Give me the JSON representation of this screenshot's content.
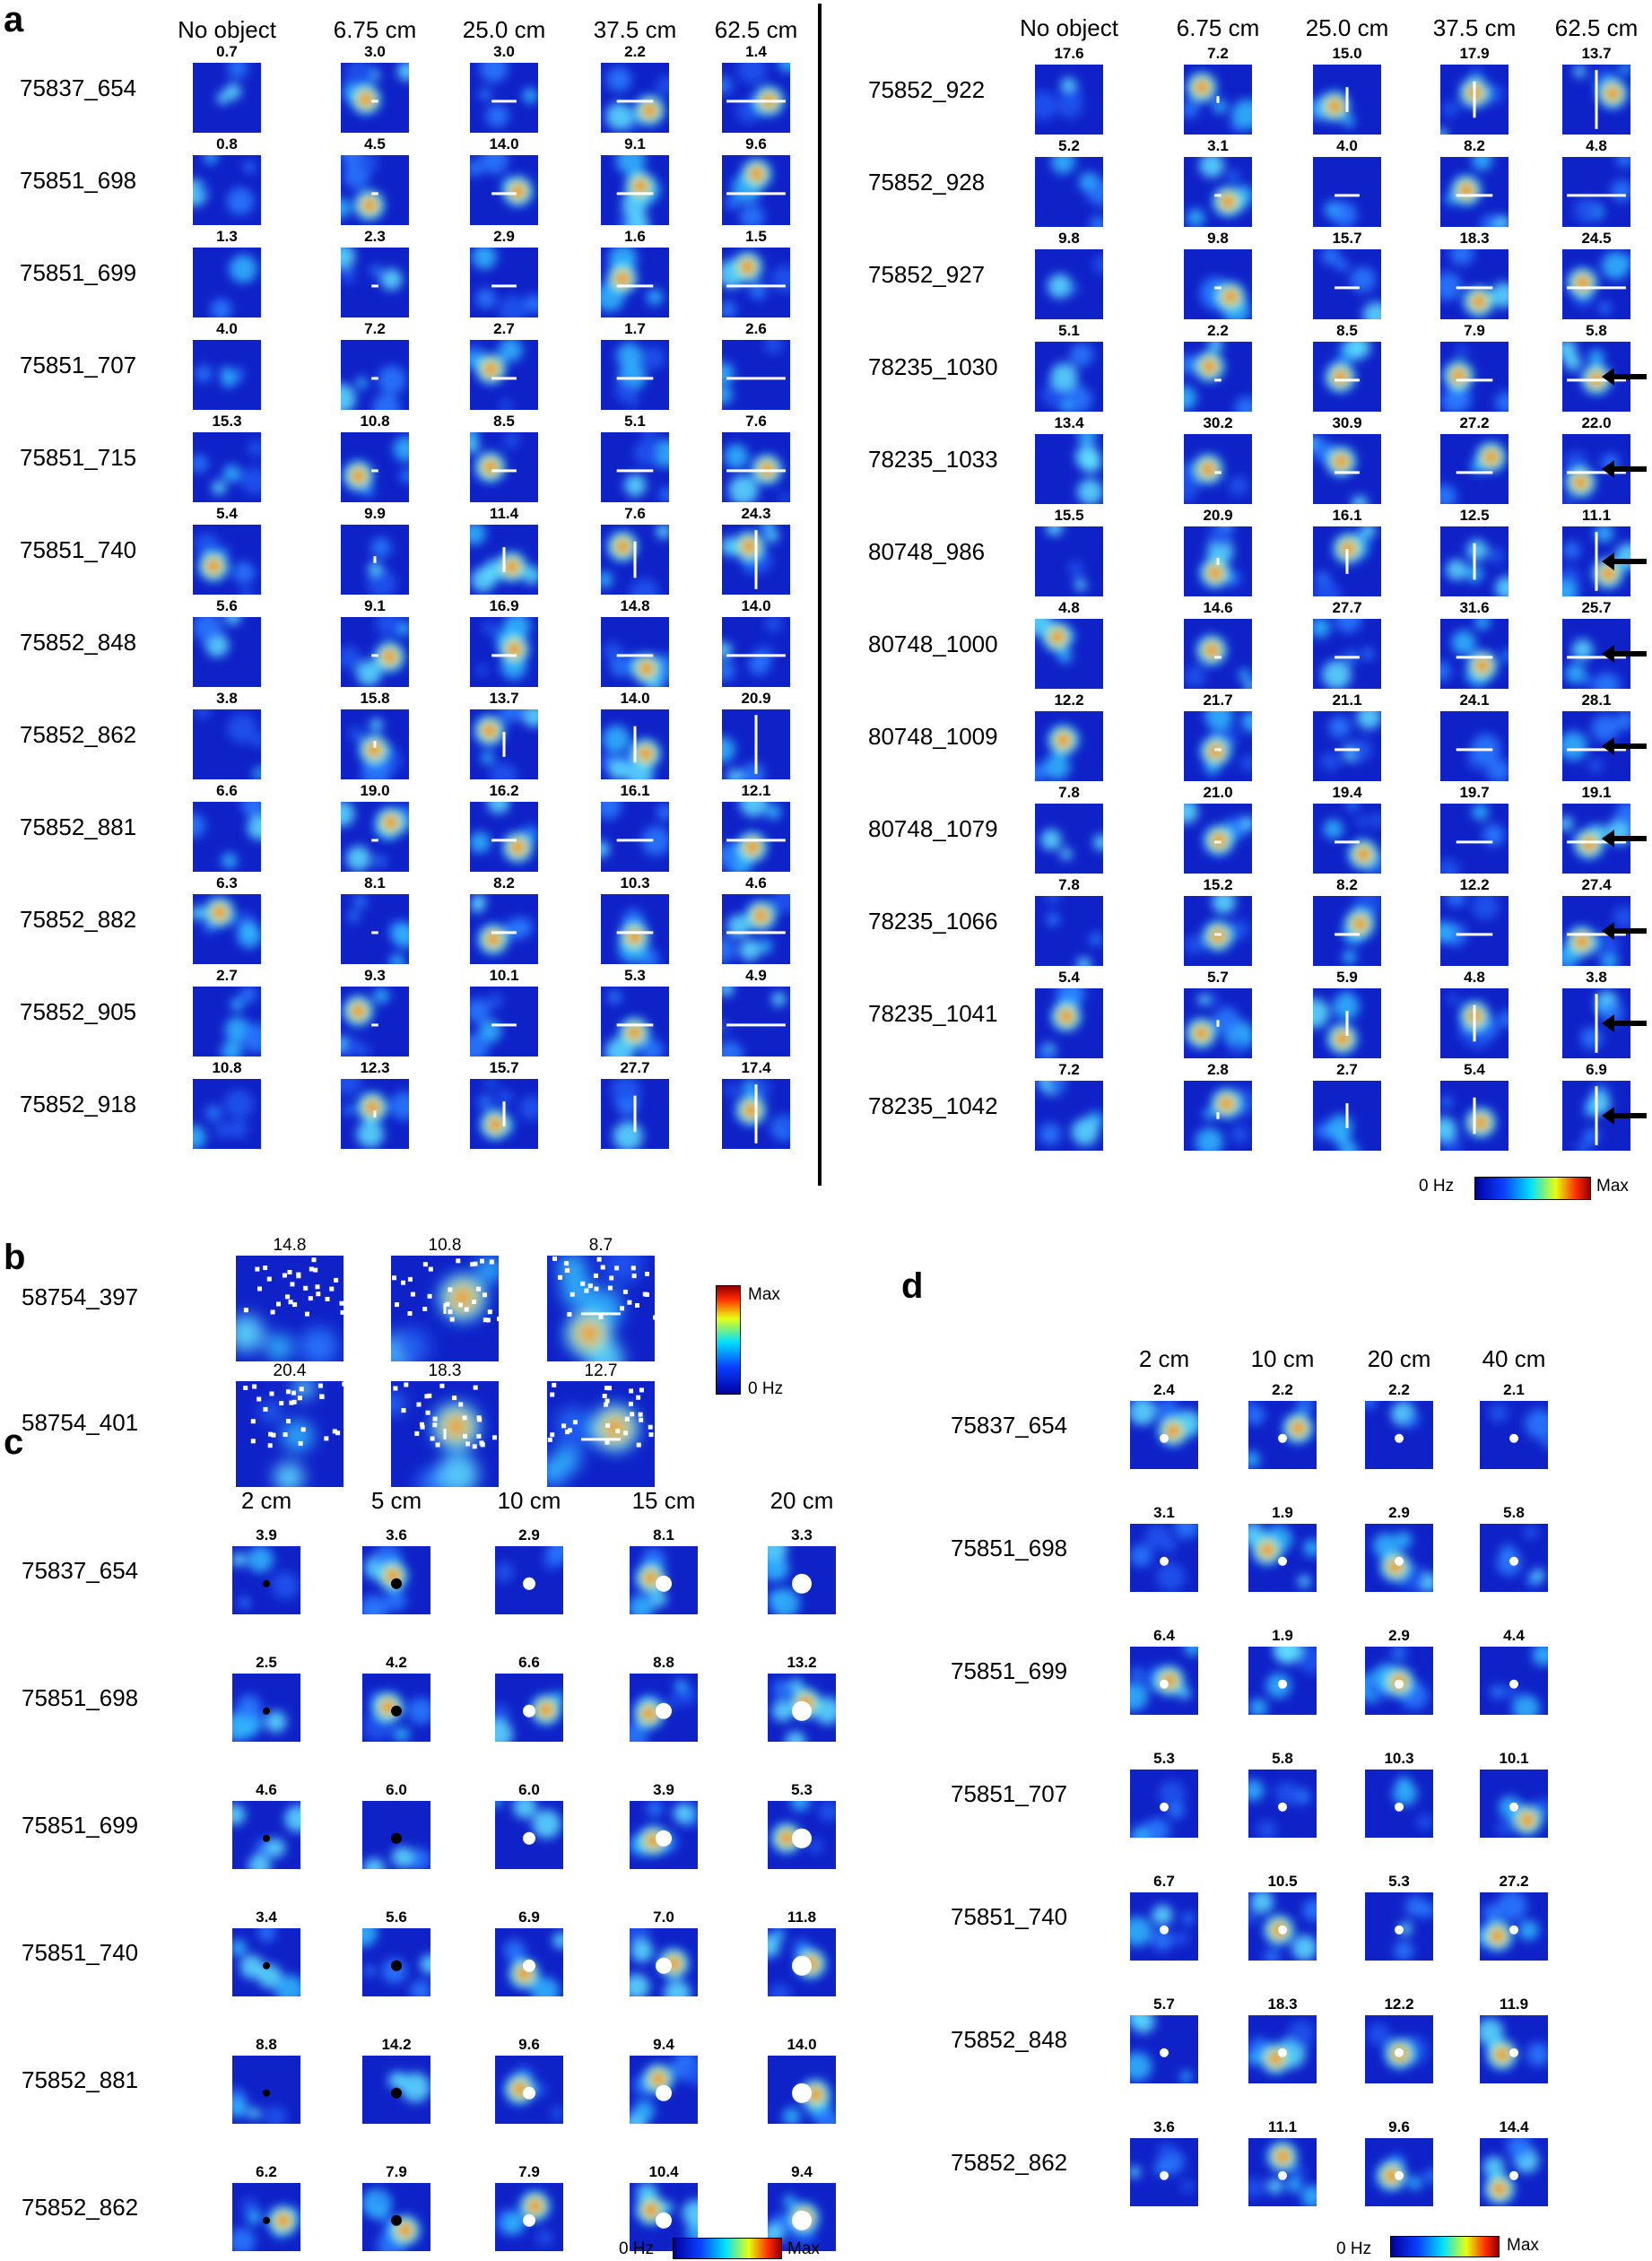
{
  "palette": {
    "low": "#1a1aa8",
    "mid": "#0a3fd6",
    "accent": "#35a2ff",
    "hot": "#e81818"
  },
  "panels": [
    {
      "letter": "a",
      "groups": [
        {
          "columns": [
            "No object",
            "6.75 cm",
            "25.0 cm",
            "37.5 cm",
            "62.5 cm"
          ],
          "rows": [
            {
              "label": "75837_654",
              "rates": [
                "0.7",
                "3.0",
                "3.0",
                "2.2",
                "1.4"
              ]
            },
            {
              "label": "75851_698",
              "rates": [
                "0.8",
                "4.5",
                "14.0",
                "9.1",
                "9.6"
              ]
            },
            {
              "label": "75851_699",
              "rates": [
                "1.3",
                "2.3",
                "2.9",
                "1.6",
                "1.5"
              ]
            },
            {
              "label": "75851_707",
              "rates": [
                "4.0",
                "7.2",
                "2.7",
                "1.7",
                "2.6"
              ]
            },
            {
              "label": "75851_715",
              "rates": [
                "15.3",
                "10.8",
                "8.5",
                "5.1",
                "7.6"
              ]
            },
            {
              "label": "75851_740",
              "rates": [
                "5.4",
                "9.9",
                "11.4",
                "7.6",
                "24.3"
              ]
            },
            {
              "label": "75852_848",
              "rates": [
                "5.6",
                "9.1",
                "16.9",
                "14.8",
                "14.0"
              ]
            },
            {
              "label": "75852_862",
              "rates": [
                "3.8",
                "15.8",
                "13.7",
                "14.0",
                "20.9"
              ]
            },
            {
              "label": "75852_881",
              "rates": [
                "6.6",
                "19.0",
                "16.2",
                "16.1",
                "12.1"
              ]
            },
            {
              "label": "75852_882",
              "rates": [
                "6.3",
                "8.1",
                "8.2",
                "10.3",
                "4.6"
              ]
            },
            {
              "label": "75852_905",
              "rates": [
                "2.7",
                "9.3",
                "10.1",
                "5.3",
                "4.9"
              ]
            },
            {
              "label": "75852_918",
              "rates": [
                "10.8",
                "12.3",
                "15.7",
                "27.7",
                "17.4"
              ]
            }
          ]
        },
        {
          "columns": [
            "No object",
            "6.75 cm",
            "25.0 cm",
            "37.5 cm",
            "62.5 cm"
          ],
          "rows": [
            {
              "label": "75852_922",
              "rates": [
                "17.6",
                "7.2",
                "15.0",
                "17.9",
                "13.7"
              ]
            },
            {
              "label": "75852_928",
              "rates": [
                "5.2",
                "3.1",
                "4.0",
                "8.2",
                "4.8"
              ]
            },
            {
              "label": "75852_927",
              "rates": [
                "9.8",
                "9.8",
                "15.7",
                "18.3",
                "24.5"
              ]
            },
            {
              "label": "78235_1030",
              "rates": [
                "5.1",
                "2.2",
                "8.5",
                "7.9",
                "5.8"
              ]
            },
            {
              "label": "78235_1033",
              "rates": [
                "13.4",
                "30.2",
                "30.9",
                "27.2",
                "22.0"
              ]
            },
            {
              "label": "80748_986",
              "rates": [
                "15.5",
                "20.9",
                "16.1",
                "12.5",
                "11.1"
              ]
            },
            {
              "label": "80748_1000",
              "rates": [
                "4.8",
                "14.6",
                "27.7",
                "31.6",
                "25.7"
              ]
            },
            {
              "label": "80748_1009",
              "rates": [
                "12.2",
                "21.7",
                "21.1",
                "24.1",
                "28.1"
              ]
            },
            {
              "label": "80748_1079",
              "rates": [
                "7.8",
                "21.0",
                "19.4",
                "19.7",
                "19.1"
              ]
            },
            {
              "label": "78235_1066",
              "rates": [
                "7.8",
                "15.2",
                "8.2",
                "12.2",
                "27.4"
              ]
            },
            {
              "label": "78235_1041",
              "rates": [
                "5.4",
                "5.7",
                "5.9",
                "4.8",
                "3.8"
              ]
            },
            {
              "label": "78235_1042",
              "rates": [
                "7.2",
                "2.8",
                "2.7",
                "5.4",
                "6.9"
              ]
            }
          ]
        }
      ],
      "colorbar": {
        "low": "0 Hz",
        "high": "Max"
      }
    },
    {
      "letter": "b",
      "rows": [
        {
          "label": "58754_397",
          "rates": [
            "14.8",
            "10.8",
            "8.7"
          ]
        },
        {
          "label": "58754_401",
          "rates": [
            "20.4",
            "18.3",
            "12.7"
          ]
        }
      ],
      "colorbar": {
        "low": "0 Hz",
        "high": "Max"
      }
    },
    {
      "letter": "c",
      "columns": [
        "2 cm",
        "5 cm",
        "10 cm",
        "15 cm",
        "20 cm"
      ],
      "rows": [
        {
          "label": "75837_654",
          "rates": [
            "3.9",
            "3.6",
            "2.9",
            "8.1",
            "3.3"
          ]
        },
        {
          "label": "75851_698",
          "rates": [
            "2.5",
            "4.2",
            "6.6",
            "8.8",
            "13.2"
          ]
        },
        {
          "label": "75851_699",
          "rates": [
            "4.6",
            "6.0",
            "6.0",
            "3.9",
            "5.3"
          ]
        },
        {
          "label": "75851_740",
          "rates": [
            "3.4",
            "5.6",
            "6.9",
            "7.0",
            "11.8"
          ]
        },
        {
          "label": "75852_881",
          "rates": [
            "8.8",
            "14.2",
            "9.6",
            "9.4",
            "14.0"
          ]
        },
        {
          "label": "75852_862",
          "rates": [
            "6.2",
            "7.9",
            "7.9",
            "10.4",
            "9.4"
          ]
        }
      ],
      "colorbar": {
        "low": "0 Hz",
        "high": "Max"
      }
    },
    {
      "letter": "d",
      "columns": [
        "2 cm",
        "10 cm",
        "20 cm",
        "40 cm"
      ],
      "rows": [
        {
          "label": "75837_654",
          "rates": [
            "2.4",
            "2.2",
            "2.2",
            "2.1"
          ]
        },
        {
          "label": "75851_698",
          "rates": [
            "3.1",
            "1.9",
            "2.9",
            "5.8"
          ]
        },
        {
          "label": "75851_699",
          "rates": [
            "6.4",
            "1.9",
            "2.9",
            "4.4"
          ]
        },
        {
          "label": "75851_707",
          "rates": [
            "5.3",
            "5.8",
            "10.3",
            "10.1"
          ]
        },
        {
          "label": "75851_740",
          "rates": [
            "6.7",
            "10.5",
            "5.3",
            "27.2"
          ]
        },
        {
          "label": "75852_848",
          "rates": [
            "5.7",
            "18.3",
            "12.2",
            "11.9"
          ]
        },
        {
          "label": "75852_862",
          "rates": [
            "3.6",
            "11.1",
            "9.6",
            "14.4"
          ]
        }
      ],
      "colorbar": {
        "low": "0 Hz",
        "high": "Max"
      }
    }
  ]
}
